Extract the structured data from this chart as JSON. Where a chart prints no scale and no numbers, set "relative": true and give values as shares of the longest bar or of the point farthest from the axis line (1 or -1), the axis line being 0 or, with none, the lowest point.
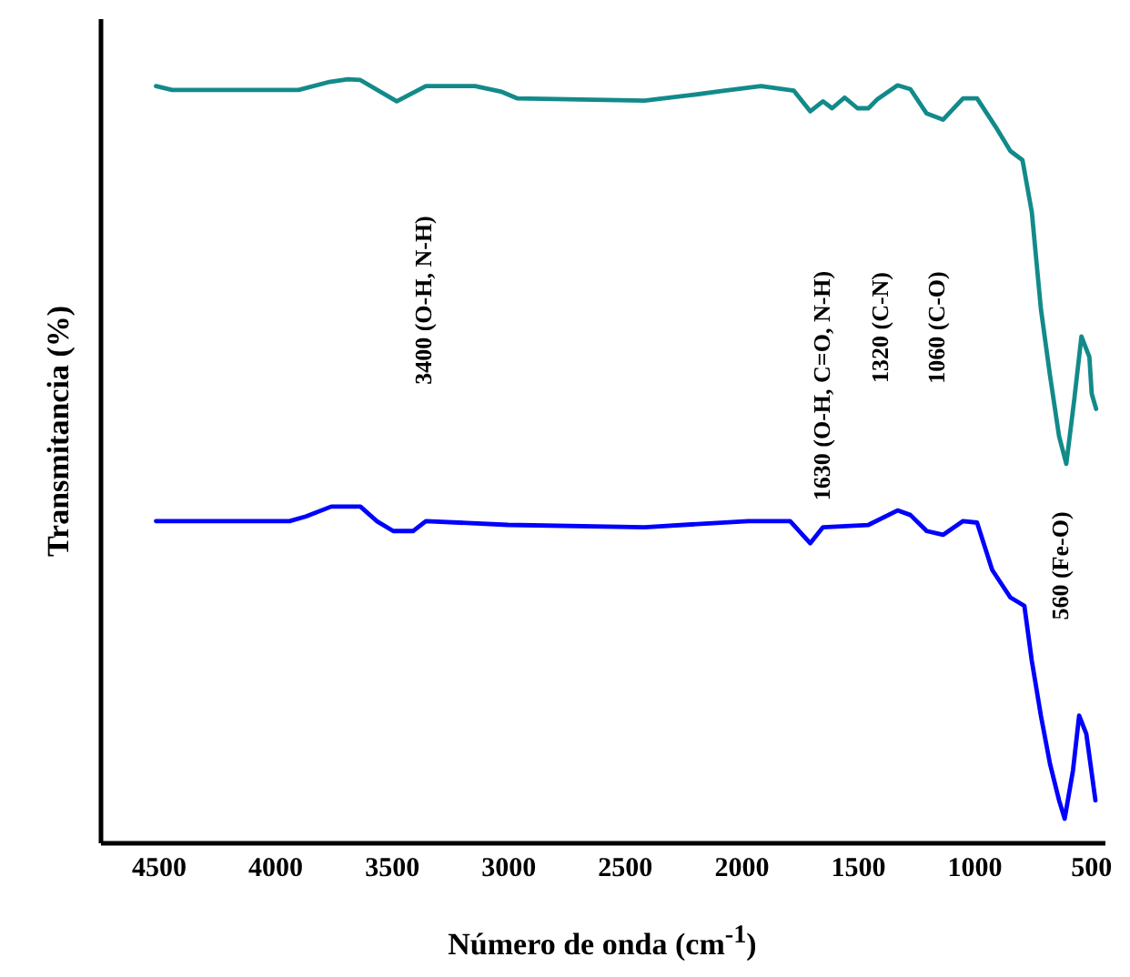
{
  "chart_data": {
    "type": "line",
    "relative": true,
    "xlabel": "Número de onda (cm$^{-1}$)",
    "ylabel": "Transmitancia (%)",
    "xlim": [
      4750,
      440
    ],
    "xticks": [
      4500,
      4000,
      3500,
      3000,
      2500,
      2000,
      1500,
      1000,
      500
    ],
    "grid": false,
    "marker": "none",
    "line_style": "solid",
    "series": [
      {
        "color": "#138a8a",
        "x": [
          4510,
          4441,
          3898,
          3773,
          3687,
          3633,
          3477,
          3352,
          3141,
          3031,
          2961,
          2414,
          2219,
          2070,
          1914,
          1773,
          1703,
          1648,
          1609,
          1555,
          1500,
          1453,
          1414,
          1328,
          1273,
          1203,
          1133,
          1047,
          987,
          908,
          844,
          792,
          752,
          713,
          674,
          635,
          604,
          570,
          539,
          505,
          495,
          476
        ],
        "values": [
          0.991,
          0.986,
          0.986,
          0.996,
          1.0,
          0.999,
          0.971,
          0.991,
          0.991,
          0.984,
          0.975,
          0.972,
          0.979,
          0.985,
          0.991,
          0.985,
          0.958,
          0.971,
          0.962,
          0.976,
          0.962,
          0.962,
          0.974,
          0.992,
          0.987,
          0.955,
          0.947,
          0.975,
          0.975,
          0.938,
          0.906,
          0.894,
          0.826,
          0.699,
          0.612,
          0.532,
          0.496,
          0.58,
          0.663,
          0.636,
          0.588,
          0.568
        ]
      },
      {
        "color": "#0000ff",
        "x": [
          4510,
          3937,
          3867,
          3758,
          3633,
          3563,
          3492,
          3406,
          3352,
          3000,
          2414,
          1969,
          1789,
          1703,
          1648,
          1453,
          1328,
          1273,
          1203,
          1133,
          1047,
          987,
          922,
          844,
          784,
          752,
          713,
          674,
          635,
          611,
          575,
          549,
          518,
          479
        ],
        "values": [
          0.421,
          0.421,
          0.427,
          0.44,
          0.44,
          0.421,
          0.408,
          0.408,
          0.421,
          0.416,
          0.413,
          0.421,
          0.421,
          0.392,
          0.413,
          0.416,
          0.435,
          0.429,
          0.408,
          0.403,
          0.421,
          0.419,
          0.357,
          0.321,
          0.31,
          0.238,
          0.166,
          0.103,
          0.055,
          0.031,
          0.095,
          0.166,
          0.142,
          0.055
        ]
      }
    ],
    "annotations": [
      "3400 (O-H, N-H)",
      "1630 (O-H, C=O, N-H)",
      "1320 (C-N)",
      "1060 (C-O)",
      "560 (Fe-O)"
    ]
  }
}
